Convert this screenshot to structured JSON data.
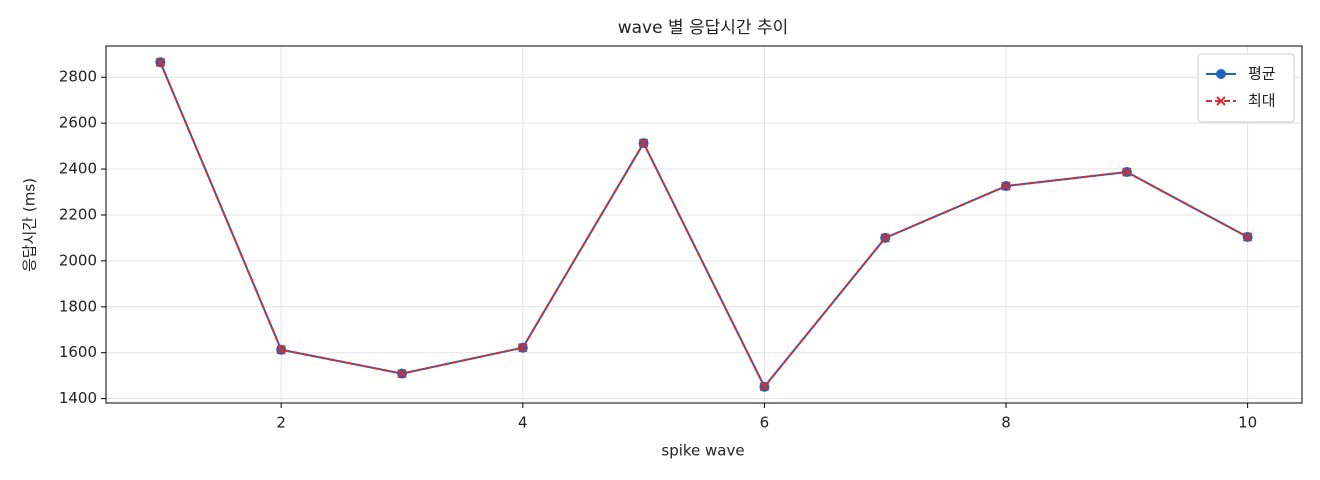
{
  "chart_data": {
    "type": "line",
    "title": "wave 별 응답시간 추이",
    "x_label": "spike wave",
    "y_label": "응답시간 (ms)",
    "x": [
      1,
      2,
      3,
      4,
      5,
      6,
      7,
      8,
      9,
      10
    ],
    "series": [
      {
        "name": "평균",
        "color": "#1f63bd",
        "marker": "circle",
        "dashed": false,
        "values": [
          2865,
          1613,
          1509,
          1622,
          2513,
          1452,
          2100,
          2326,
          2387,
          2104
        ]
      },
      {
        "name": "최대",
        "color": "#d3302f",
        "marker": "x",
        "dashed": true,
        "values": [
          2865,
          1613,
          1509,
          1622,
          2513,
          1452,
          2100,
          2326,
          2387,
          2104
        ]
      }
    ],
    "xlim": [
      0.55,
      10.45
    ],
    "xticks": [
      2,
      4,
      6,
      8,
      10
    ],
    "ylim": [
      1381,
      2936
    ],
    "yticks": [
      1400,
      1600,
      1800,
      2000,
      2200,
      2400,
      2600,
      2800
    ],
    "grid": true,
    "legend": "upper-right"
  }
}
